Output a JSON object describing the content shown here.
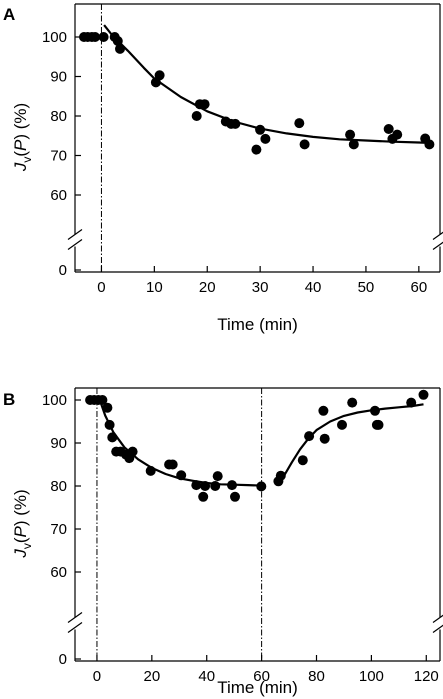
{
  "chart_data": [
    {
      "panel": "A",
      "type": "scatter",
      "xlabel": "Time (min)",
      "ylabel": "Jv(P) (%)",
      "ylabel_parts": {
        "j": "J",
        "sub": "v",
        "open": "(",
        "p": "P",
        "close": ") (%)"
      },
      "xlim": [
        -5,
        64
      ],
      "ylim": [
        50,
        105
      ],
      "xticks": [
        0,
        10,
        20,
        30,
        40,
        50,
        60
      ],
      "yticks": [
        60,
        70,
        80,
        90,
        100
      ],
      "y_break_value": 0,
      "vertical_lines": [
        0
      ],
      "points": [
        {
          "x": -3.3,
          "y": 100
        },
        {
          "x": -2.6,
          "y": 100
        },
        {
          "x": -1.8,
          "y": 100
        },
        {
          "x": -1.2,
          "y": 100
        },
        {
          "x": 0.4,
          "y": 100
        },
        {
          "x": 2.5,
          "y": 100
        },
        {
          "x": 3.1,
          "y": 99
        },
        {
          "x": 3.5,
          "y": 97
        },
        {
          "x": 10.3,
          "y": 88.5
        },
        {
          "x": 11.0,
          "y": 90.3
        },
        {
          "x": 18.0,
          "y": 80.0
        },
        {
          "x": 18.6,
          "y": 83
        },
        {
          "x": 19.5,
          "y": 83
        },
        {
          "x": 23.5,
          "y": 78.6
        },
        {
          "x": 24.5,
          "y": 78
        },
        {
          "x": 25.3,
          "y": 78
        },
        {
          "x": 29.3,
          "y": 71.5
        },
        {
          "x": 30.0,
          "y": 76.5
        },
        {
          "x": 31.0,
          "y": 74.2
        },
        {
          "x": 37.4,
          "y": 78.2
        },
        {
          "x": 38.4,
          "y": 72.8
        },
        {
          "x": 47.0,
          "y": 75.3
        },
        {
          "x": 47.7,
          "y": 72.8
        },
        {
          "x": 54.3,
          "y": 76.7
        },
        {
          "x": 55.0,
          "y": 74.2
        },
        {
          "x": 55.9,
          "y": 75.3
        },
        {
          "x": 61.2,
          "y": 74.3
        },
        {
          "x": 62.0,
          "y": 72.8
        }
      ],
      "fit_curve": [
        [
          0.5,
          103
        ],
        [
          2,
          100.5
        ],
        [
          5,
          96.5
        ],
        [
          8,
          92.2
        ],
        [
          10,
          89.5
        ],
        [
          15,
          84.8
        ],
        [
          20,
          81.2
        ],
        [
          25,
          78.6
        ],
        [
          30,
          76.8
        ],
        [
          35,
          75.6
        ],
        [
          40,
          74.7
        ],
        [
          45,
          74.1
        ],
        [
          50,
          73.8
        ],
        [
          55,
          73.5
        ],
        [
          60,
          73.3
        ],
        [
          62,
          73.2
        ]
      ]
    },
    {
      "panel": "B",
      "type": "scatter",
      "xlabel": "Time (min)",
      "ylabel": "Jv(P) (%)",
      "ylabel_parts": {
        "j": "J",
        "sub": "v",
        "open": "(",
        "p": "P",
        "close": ") (%)"
      },
      "xlim": [
        -8,
        125
      ],
      "ylim": [
        50,
        105
      ],
      "xticks": [
        0,
        20,
        40,
        60,
        80,
        100,
        120
      ],
      "yticks": [
        60,
        70,
        80,
        90,
        100
      ],
      "y_break_value": 0,
      "vertical_lines": [
        0,
        60
      ],
      "points": [
        {
          "x": -2.5,
          "y": 100
        },
        {
          "x": -1.0,
          "y": 100
        },
        {
          "x": 0.5,
          "y": 100
        },
        {
          "x": 2.0,
          "y": 100
        },
        {
          "x": 3.8,
          "y": 98.2
        },
        {
          "x": 4.6,
          "y": 94.2
        },
        {
          "x": 5.6,
          "y": 91.3
        },
        {
          "x": 7.0,
          "y": 88
        },
        {
          "x": 8.6,
          "y": 88
        },
        {
          "x": 10.6,
          "y": 87.3
        },
        {
          "x": 11.8,
          "y": 86.5
        },
        {
          "x": 13.0,
          "y": 88
        },
        {
          "x": 19.6,
          "y": 83.5
        },
        {
          "x": 26.3,
          "y": 85
        },
        {
          "x": 27.6,
          "y": 85
        },
        {
          "x": 30.7,
          "y": 82.5
        },
        {
          "x": 36.2,
          "y": 80.2
        },
        {
          "x": 38.7,
          "y": 77.5
        },
        {
          "x": 39.4,
          "y": 80
        },
        {
          "x": 43.1,
          "y": 80
        },
        {
          "x": 44.0,
          "y": 82.3
        },
        {
          "x": 49.2,
          "y": 80.2
        },
        {
          "x": 50.3,
          "y": 77.5
        },
        {
          "x": 59.9,
          "y": 79.9
        },
        {
          "x": 66.1,
          "y": 81.1
        },
        {
          "x": 67.0,
          "y": 82.4
        },
        {
          "x": 75.0,
          "y": 86
        },
        {
          "x": 77.3,
          "y": 91.6
        },
        {
          "x": 82.5,
          "y": 97.5
        },
        {
          "x": 83.0,
          "y": 91
        },
        {
          "x": 89.3,
          "y": 94.2
        },
        {
          "x": 93.0,
          "y": 99.4
        },
        {
          "x": 101.3,
          "y": 97.5
        },
        {
          "x": 102.0,
          "y": 94.2
        },
        {
          "x": 102.6,
          "y": 94.2
        },
        {
          "x": 114.5,
          "y": 99.4
        },
        {
          "x": 119.0,
          "y": 101.2
        }
      ],
      "fit_curve_phase1": [
        [
          0.5,
          101
        ],
        [
          3,
          96.4
        ],
        [
          6,
          92.5
        ],
        [
          10,
          89
        ],
        [
          15,
          86.2
        ],
        [
          20,
          84.2
        ],
        [
          25,
          82.8
        ],
        [
          30,
          81.8
        ],
        [
          35,
          81.2
        ],
        [
          40,
          80.7
        ],
        [
          45,
          80.4
        ],
        [
          50,
          80.3
        ],
        [
          55,
          80.2
        ],
        [
          60,
          80.1
        ]
      ],
      "fit_curve_phase2": [
        [
          66,
          80.5
        ],
        [
          68,
          82.2
        ],
        [
          71,
          85.5
        ],
        [
          74,
          88.5
        ],
        [
          77,
          91
        ],
        [
          80,
          93
        ],
        [
          85,
          95
        ],
        [
          90,
          96.3
        ],
        [
          95,
          97.1
        ],
        [
          100,
          97.6
        ],
        [
          105,
          98
        ],
        [
          110,
          98.3
        ],
        [
          115,
          98.6
        ],
        [
          119,
          99
        ]
      ]
    }
  ]
}
